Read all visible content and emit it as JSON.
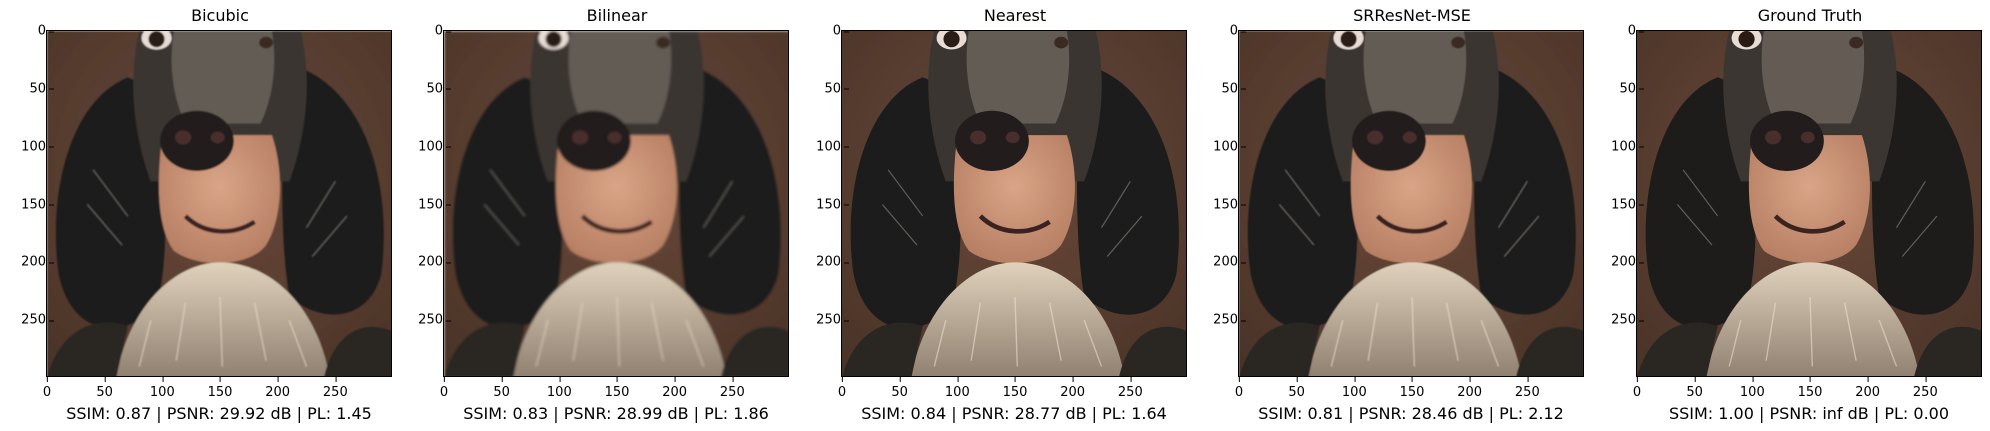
{
  "axis": {
    "x_ticks": [
      "0",
      "50",
      "100",
      "150",
      "200",
      "250"
    ],
    "y_ticks": [
      "0",
      "50",
      "100",
      "150",
      "200",
      "250"
    ]
  },
  "panels": [
    {
      "title": "Bicubic",
      "metrics": "SSIM: 0.87 | PSNR: 29.92 dB | PL: 1.45",
      "blur": 0.6
    },
    {
      "title": "Bilinear",
      "metrics": "SSIM: 0.83 | PSNR: 28.99 dB | PL: 1.86",
      "blur": 1.1
    },
    {
      "title": "Nearest",
      "metrics": "SSIM: 0.84 | PSNR: 28.77 dB | PL: 1.64",
      "blur": 0.3
    },
    {
      "title": "SRResNet-MSE",
      "metrics": "SSIM: 0.81 | PSNR: 28.46 dB | PL: 2.12",
      "blur": 0.5
    },
    {
      "title": "Ground Truth",
      "metrics": "SSIM: 1.00 | PSNR: inf dB | PL: 0.00",
      "blur": 0
    }
  ],
  "colors": {
    "background": "#4a3328",
    "dark_fur": "#1e1c1a",
    "muzzle": "#b88064",
    "nose": "#221c1c",
    "chest_fur": "#c9b8a2"
  }
}
